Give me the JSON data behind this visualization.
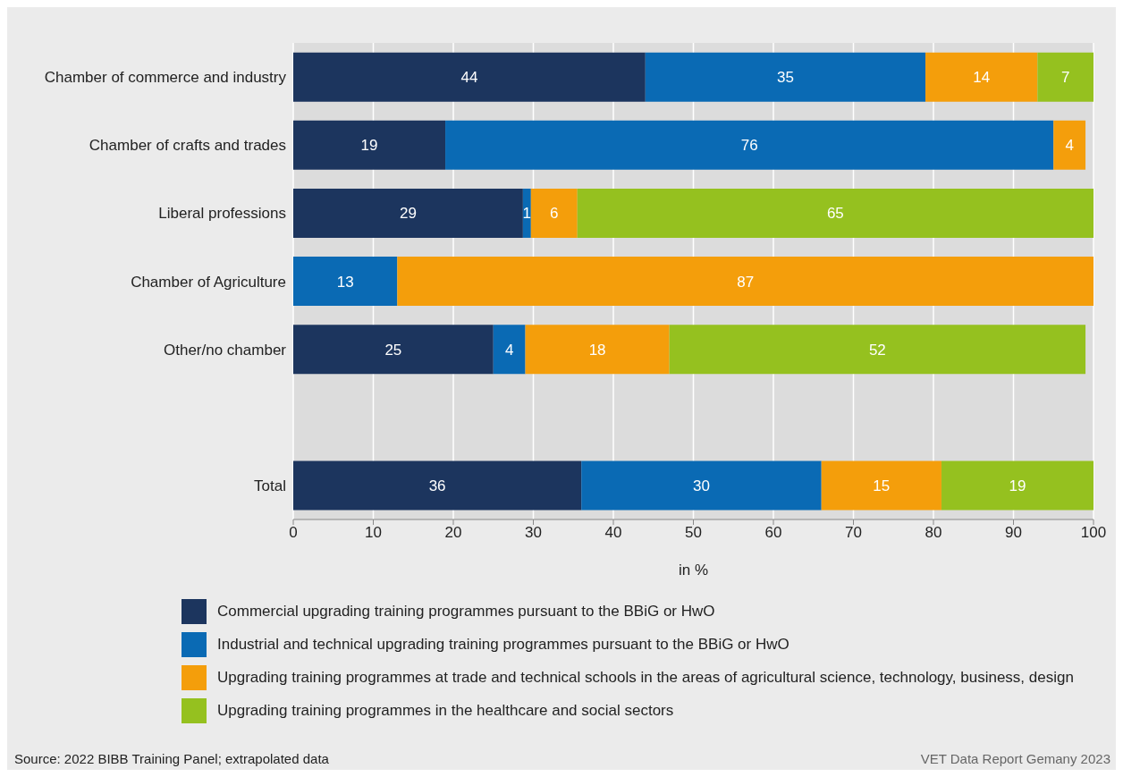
{
  "chart_data": {
    "type": "bar",
    "orientation": "horizontal",
    "stacked": true,
    "grid": "x",
    "legend": "bottom",
    "xlabel": "in %",
    "categories": [
      "Chamber of commerce and industry",
      "Chamber of crafts and trades",
      "Liberal professions",
      "Chamber of Agriculture",
      "Other/no chamber",
      null,
      "Total"
    ],
    "xlim": [
      0,
      100
    ],
    "xticks": [
      0,
      10,
      20,
      30,
      40,
      50,
      60,
      70,
      80,
      90,
      100
    ],
    "series": [
      {
        "name": "Commercial upgrading training programmes pursuant to the BBiG or HwO",
        "color": "#1c355e",
        "values": [
          44,
          19,
          28.7,
          null,
          25,
          null,
          36
        ],
        "value_labels": [
          "44",
          "19",
          "29",
          null,
          "25",
          null,
          "36"
        ]
      },
      {
        "name": "Industrial and technical upgrading training programmes pursuant to the BBiG or HwO",
        "color": "#0a6ab4",
        "values": [
          35,
          76,
          1,
          13,
          4,
          null,
          30
        ],
        "value_labels": [
          "35",
          "76",
          "1",
          "13",
          "4",
          null,
          "30"
        ]
      },
      {
        "name": "Upgrading training programmes at trade and technical schools in the areas of agricultural science, technology, business, design",
        "color": "#f49e0b",
        "values": [
          14,
          4,
          5.8,
          87,
          18,
          null,
          15
        ],
        "value_labels": [
          "14",
          "4",
          "6",
          "87",
          "18",
          null,
          "15"
        ]
      },
      {
        "name": "Upgrading training programmes in the healthcare and social sectors",
        "color": "#95c11f",
        "values": [
          7,
          null,
          64.5,
          null,
          52,
          null,
          19
        ],
        "value_labels": [
          "7",
          null,
          "65",
          null,
          "52",
          null,
          "19"
        ]
      }
    ],
    "annotations": [
      "Source: 2022 BIBB Training Panel; extrapolated data",
      "VET Data Report Gemany 2023"
    ]
  }
}
